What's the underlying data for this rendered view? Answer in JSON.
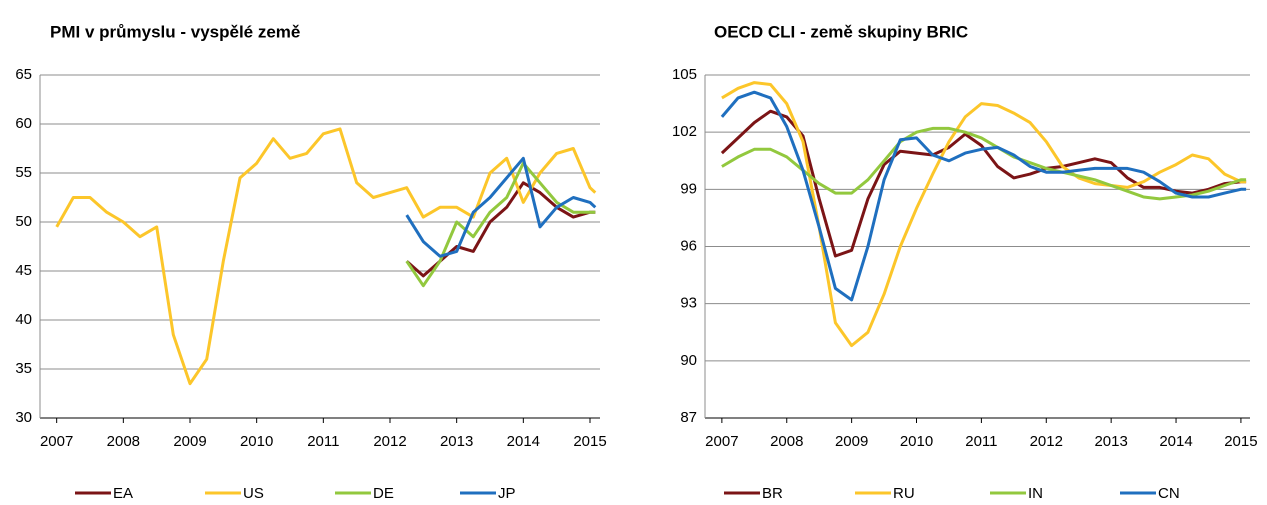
{
  "chart_data": [
    {
      "type": "line",
      "title": "PMI v průmyslu - vyspělé země",
      "x": [
        2007,
        2007.25,
        2007.5,
        2007.75,
        2008,
        2008.25,
        2008.5,
        2008.75,
        2009,
        2009.25,
        2009.5,
        2009.75,
        2010,
        2010.25,
        2010.5,
        2010.75,
        2011,
        2011.25,
        2011.5,
        2011.75,
        2012,
        2012.25,
        2012.5,
        2012.75,
        2013,
        2013.25,
        2013.5,
        2013.75,
        2014,
        2014.25,
        2014.5,
        2014.75,
        2015,
        2015.08
      ],
      "xlim": [
        2006.75,
        2015.15
      ],
      "xticks": [
        2007,
        2008,
        2009,
        2010,
        2011,
        2012,
        2013,
        2014,
        2015
      ],
      "ylim": [
        30,
        65
      ],
      "yticks": [
        30,
        35,
        40,
        45,
        50,
        55,
        60,
        65
      ],
      "grid": true,
      "series": [
        {
          "name": "EA",
          "color": "#7b1416",
          "values": [
            null,
            null,
            null,
            null,
            null,
            null,
            null,
            null,
            null,
            null,
            null,
            null,
            null,
            null,
            null,
            null,
            null,
            null,
            null,
            null,
            null,
            46,
            44.5,
            46,
            47.5,
            47,
            50,
            51.5,
            54,
            53,
            51.5,
            50.5,
            51,
            51
          ]
        },
        {
          "name": "US",
          "color": "#fcc62a",
          "values": [
            49.5,
            52.5,
            52.5,
            51,
            50,
            48.5,
            49.5,
            38.5,
            33.5,
            36,
            46,
            54.5,
            56,
            58.5,
            56.5,
            57,
            59,
            59.5,
            54,
            52.5,
            53,
            53.5,
            50.5,
            51.5,
            51.5,
            50.5,
            55,
            56.5,
            52,
            55,
            57,
            57.5,
            53.5,
            53
          ]
        },
        {
          "name": "DE",
          "color": "#92c83e",
          "values": [
            null,
            null,
            null,
            null,
            null,
            null,
            null,
            null,
            null,
            null,
            null,
            null,
            null,
            null,
            null,
            null,
            null,
            null,
            null,
            null,
            null,
            46,
            43.5,
            46,
            50,
            48.5,
            51,
            52.5,
            56,
            54,
            52,
            51,
            51,
            51
          ]
        },
        {
          "name": "JP",
          "color": "#1f6fbf",
          "values": [
            null,
            null,
            null,
            null,
            null,
            null,
            null,
            null,
            null,
            null,
            null,
            null,
            null,
            null,
            null,
            null,
            null,
            null,
            null,
            null,
            null,
            50.7,
            48,
            46.5,
            47,
            51,
            52.5,
            54.5,
            56.5,
            49.5,
            51.5,
            52.5,
            52,
            51.5
          ]
        }
      ]
    },
    {
      "type": "line",
      "title": "OECD CLI - země skupiny BRIC",
      "x": [
        2007,
        2007.25,
        2007.5,
        2007.75,
        2008,
        2008.25,
        2008.5,
        2008.75,
        2009,
        2009.25,
        2009.5,
        2009.75,
        2010,
        2010.25,
        2010.5,
        2010.75,
        2011,
        2011.25,
        2011.5,
        2011.75,
        2012,
        2012.25,
        2012.5,
        2012.75,
        2013,
        2013.25,
        2013.5,
        2013.75,
        2014,
        2014.25,
        2014.5,
        2014.75,
        2015,
        2015.08
      ],
      "xlim": [
        2006.74,
        2015.14
      ],
      "xticks": [
        2007,
        2008,
        2009,
        2010,
        2011,
        2012,
        2013,
        2014,
        2015
      ],
      "ylim": [
        87,
        105
      ],
      "yticks": [
        87,
        90,
        93,
        96,
        99,
        102,
        105
      ],
      "grid": true,
      "series": [
        {
          "name": "BR",
          "color": "#7b1416",
          "values": [
            100.9,
            101.7,
            102.5,
            103.1,
            102.8,
            101.8,
            98.5,
            95.5,
            95.8,
            98.5,
            100.3,
            101,
            100.9,
            100.8,
            101.2,
            101.9,
            101.3,
            100.2,
            99.6,
            99.8,
            100.1,
            100.2,
            100.4,
            100.6,
            100.4,
            99.6,
            99.1,
            99.1,
            98.9,
            98.8,
            99,
            99.3,
            99.4,
            99.4
          ]
        },
        {
          "name": "RU",
          "color": "#fcc62a",
          "values": [
            103.8,
            104.3,
            104.6,
            104.5,
            103.5,
            101.5,
            97,
            92,
            90.8,
            91.5,
            93.5,
            96,
            98,
            99.8,
            101.5,
            102.8,
            103.5,
            103.4,
            103,
            102.5,
            101.5,
            100.2,
            99.6,
            99.3,
            99.2,
            99.1,
            99.4,
            99.9,
            100.3,
            100.8,
            100.6,
            99.8,
            99.4,
            99.4
          ]
        },
        {
          "name": "IN",
          "color": "#92c83e",
          "values": [
            100.2,
            100.7,
            101.1,
            101.1,
            100.7,
            100,
            99.3,
            98.8,
            98.8,
            99.5,
            100.5,
            101.5,
            102,
            102.2,
            102.2,
            102,
            101.7,
            101.2,
            100.7,
            100.4,
            100.1,
            99.9,
            99.7,
            99.5,
            99.2,
            98.9,
            98.6,
            98.5,
            98.6,
            98.7,
            98.9,
            99.2,
            99.5,
            99.5
          ]
        },
        {
          "name": "CN",
          "color": "#1f6fbf",
          "values": [
            102.8,
            103.8,
            104.1,
            103.8,
            102.3,
            100,
            97,
            93.8,
            93.2,
            96,
            99.5,
            101.6,
            101.7,
            100.8,
            100.5,
            100.9,
            101.1,
            101.2,
            100.8,
            100.2,
            99.9,
            99.9,
            100,
            100.1,
            100.1,
            100.1,
            99.9,
            99.4,
            98.8,
            98.6,
            98.6,
            98.8,
            99,
            99
          ]
        }
      ]
    }
  ]
}
